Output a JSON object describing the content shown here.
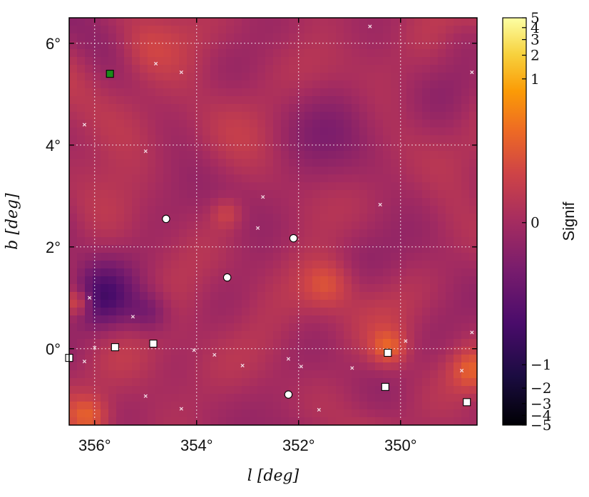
{
  "chart_data": {
    "type": "heatmap",
    "title": "",
    "xlabel": "l [deg]",
    "ylabel": "b [deg]",
    "colorbar_label": "Signif",
    "colormap": "inferno",
    "xlim": [
      356.5,
      348.5
    ],
    "ylim": [
      -1.5,
      6.5
    ],
    "x_ticks": [
      356,
      354,
      352,
      350
    ],
    "x_tick_labels": [
      "356°",
      "354°",
      "352°",
      "350°"
    ],
    "y_ticks": [
      0,
      2,
      4,
      6
    ],
    "y_tick_labels": [
      "0°",
      "2°",
      "4°",
      "6°"
    ],
    "grid": true,
    "colorbar_ticks": [
      -5,
      -4,
      -3,
      -2,
      -1,
      0,
      1,
      2,
      3,
      4,
      5
    ],
    "colorbar_tick_labels": [
      "−5",
      "−4",
      "−3",
      "−2",
      "−1",
      "0",
      "1",
      "2",
      "3",
      "4",
      "5"
    ],
    "circle_markers": [
      {
        "l": 354.6,
        "b": 2.55
      },
      {
        "l": 352.1,
        "b": 2.17
      },
      {
        "l": 353.4,
        "b": 1.4
      },
      {
        "l": 352.2,
        "b": -0.9
      }
    ],
    "square_markers": [
      {
        "l": 355.6,
        "b": 0.03
      },
      {
        "l": 354.85,
        "b": 0.1
      },
      {
        "l": 350.25,
        "b": -0.08
      },
      {
        "l": 350.3,
        "b": -0.75
      },
      {
        "l": 348.7,
        "b": -1.05
      },
      {
        "l": 356.5,
        "b": -0.18
      }
    ],
    "green_square_markers": [
      {
        "l": 355.7,
        "b": 5.4
      }
    ],
    "cross_markers": [
      {
        "l": 350.6,
        "b": 6.33
      },
      {
        "l": 354.8,
        "b": 5.6
      },
      {
        "l": 354.3,
        "b": 5.43
      },
      {
        "l": 348.6,
        "b": 5.43
      },
      {
        "l": 356.2,
        "b": 4.4
      },
      {
        "l": 355.0,
        "b": 3.88
      },
      {
        "l": 352.7,
        "b": 2.98
      },
      {
        "l": 350.4,
        "b": 2.83
      },
      {
        "l": 352.8,
        "b": 2.37
      },
      {
        "l": 356.1,
        "b": 1.0
      },
      {
        "l": 355.25,
        "b": 0.63
      },
      {
        "l": 349.9,
        "b": 0.15
      },
      {
        "l": 348.6,
        "b": 0.32
      },
      {
        "l": 356.0,
        "b": 0.02
      },
      {
        "l": 354.05,
        "b": -0.03
      },
      {
        "l": 353.65,
        "b": -0.12
      },
      {
        "l": 356.2,
        "b": -0.25
      },
      {
        "l": 352.2,
        "b": -0.2
      },
      {
        "l": 353.1,
        "b": -0.33
      },
      {
        "l": 351.95,
        "b": -0.35
      },
      {
        "l": 350.95,
        "b": -0.38
      },
      {
        "l": 348.8,
        "b": -0.43
      },
      {
        "l": 355.0,
        "b": -0.93
      },
      {
        "l": 354.3,
        "b": -1.18
      },
      {
        "l": 351.6,
        "b": -1.2
      }
    ]
  }
}
